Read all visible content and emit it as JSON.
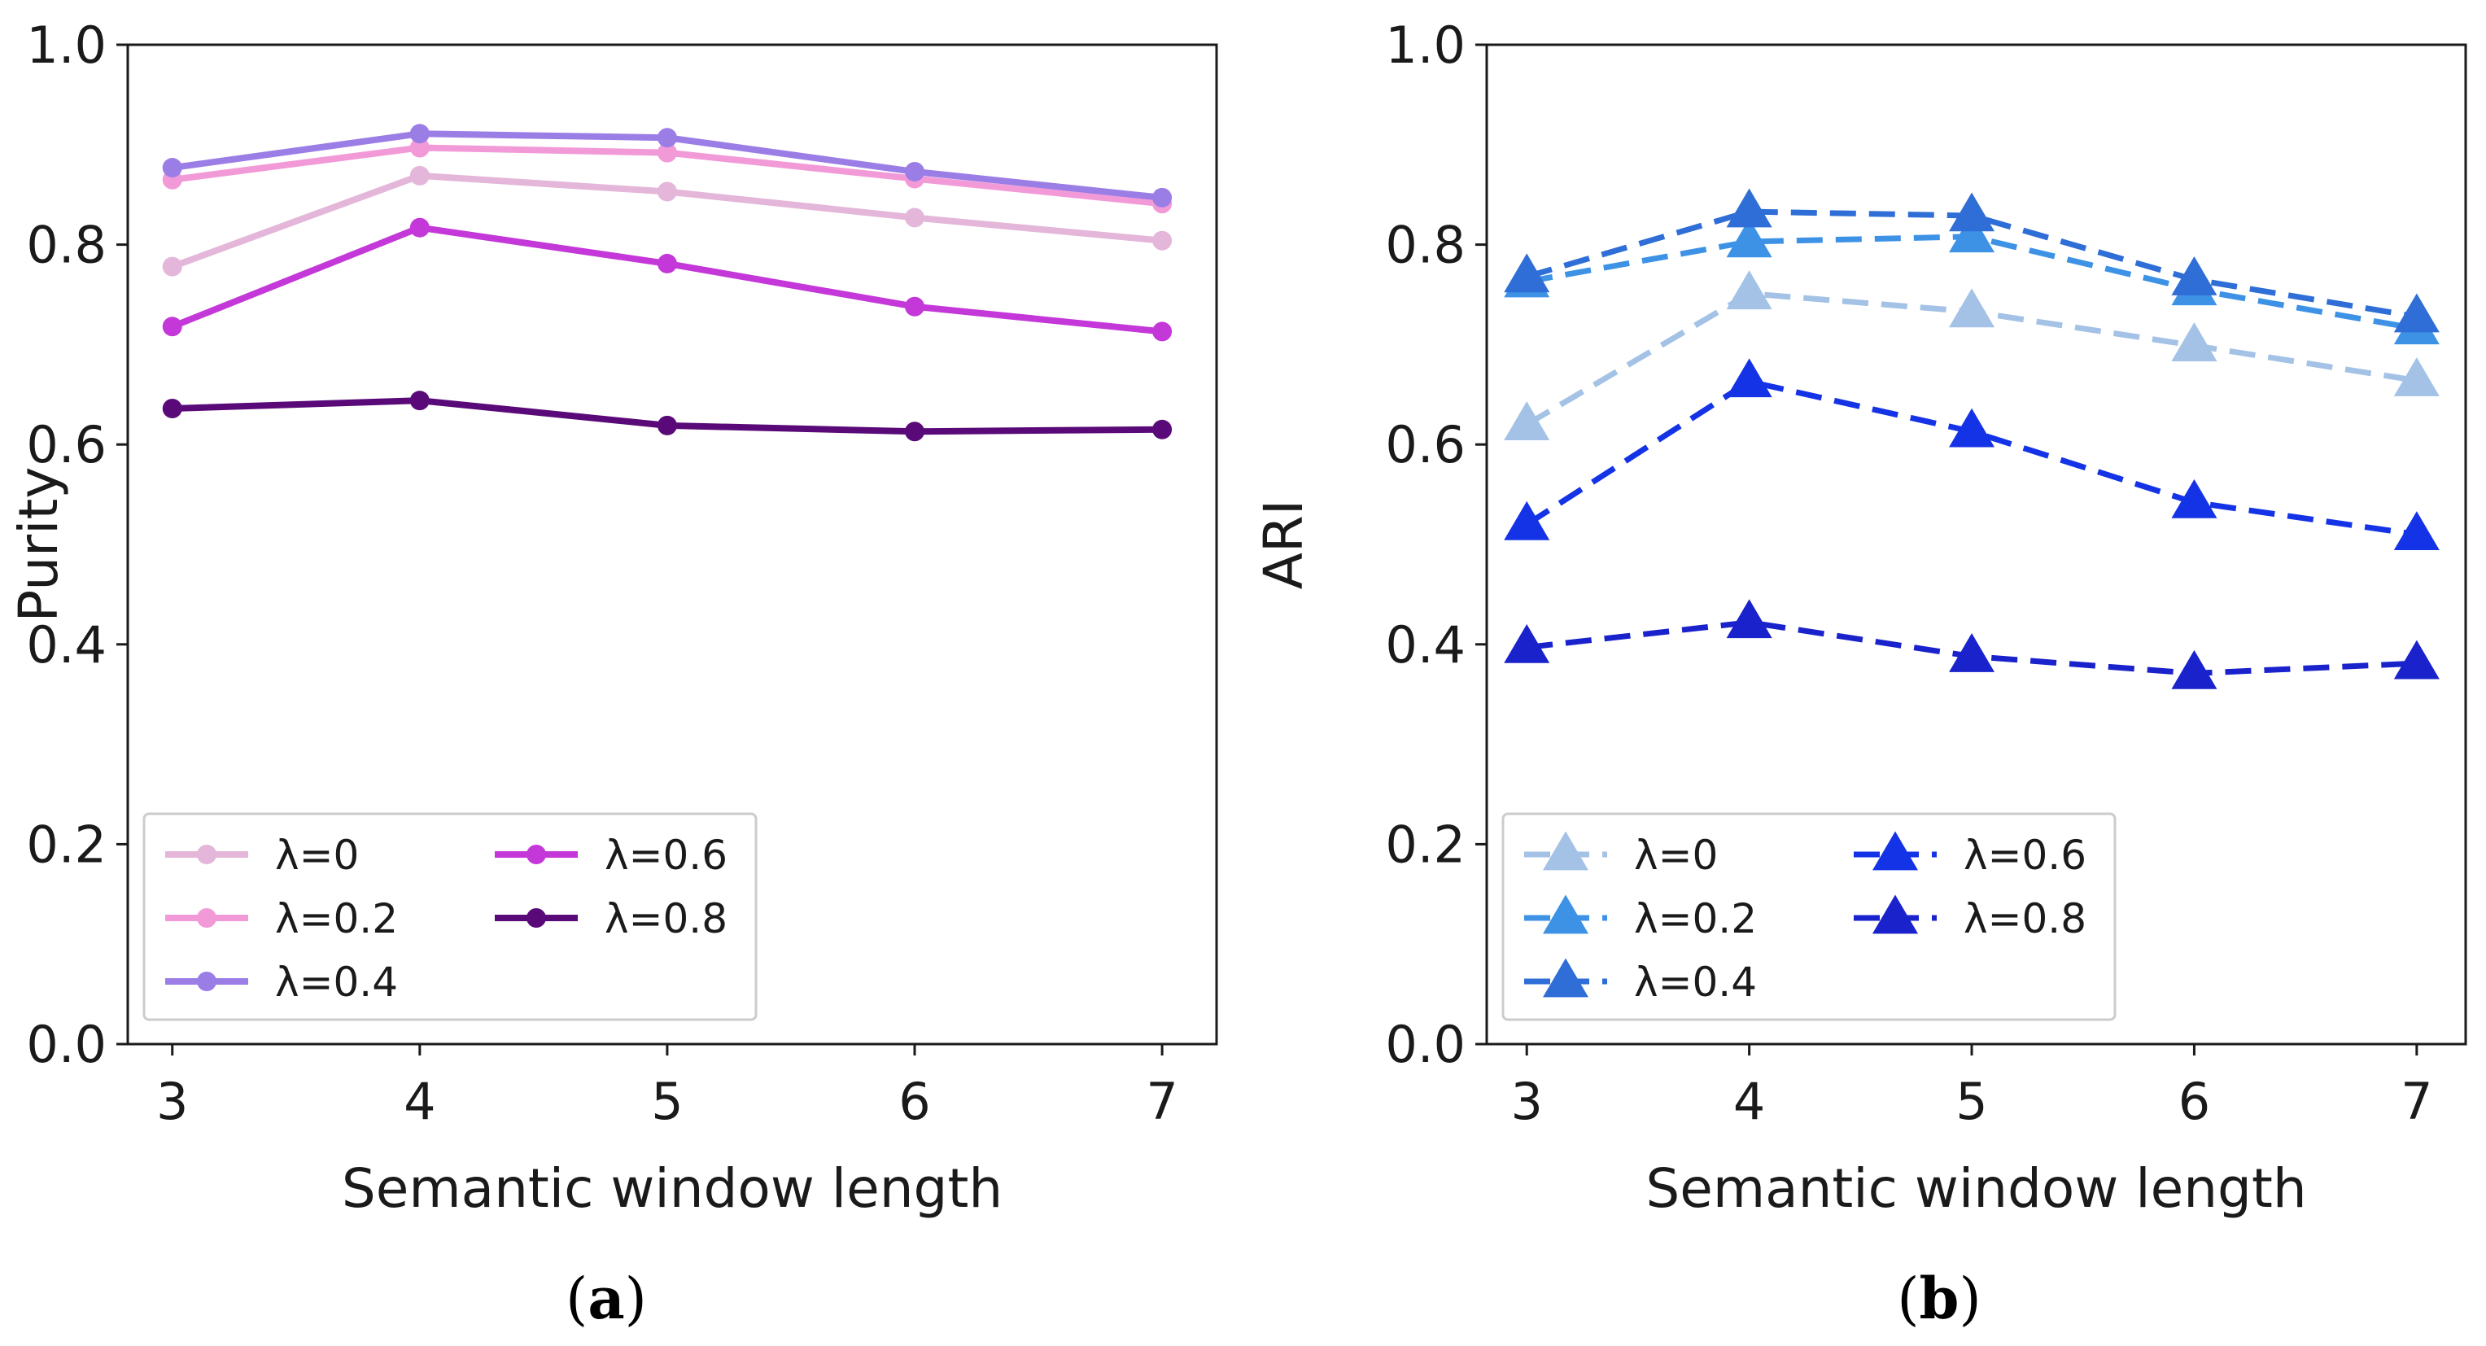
{
  "chart_data": [
    {
      "type": "line",
      "caption": {
        "open": "(",
        "letter": "a",
        "close": ")"
      },
      "xlabel": "Semantic window length",
      "ylabel": "Purity",
      "x": [
        3,
        4,
        5,
        6,
        7
      ],
      "xticks": [
        "3",
        "4",
        "5",
        "6",
        "7"
      ],
      "xlim": [
        2.82,
        7.22
      ],
      "ylim": [
        0.0,
        1.0
      ],
      "yticks": [
        "0.0",
        "0.2",
        "0.4",
        "0.6",
        "0.8",
        "1.0"
      ],
      "marker": "circle",
      "line_style": "solid",
      "legend_position": "lower-left",
      "series": [
        {
          "name": "λ=0",
          "color": "#e4b6d9",
          "values": [
            0.778,
            0.869,
            0.853,
            0.827,
            0.804
          ]
        },
        {
          "name": "λ=0.2",
          "color": "#f29ad8",
          "values": [
            0.865,
            0.897,
            0.892,
            0.866,
            0.841
          ]
        },
        {
          "name": "λ=0.4",
          "color": "#9b7de6",
          "values": [
            0.877,
            0.911,
            0.907,
            0.873,
            0.847
          ]
        },
        {
          "name": "λ=0.6",
          "color": "#c437d8",
          "values": [
            0.718,
            0.817,
            0.781,
            0.738,
            0.713
          ]
        },
        {
          "name": "λ=0.8",
          "color": "#5a0a78",
          "values": [
            0.636,
            0.644,
            0.619,
            0.613,
            0.615
          ]
        }
      ]
    },
    {
      "type": "line",
      "caption": {
        "open": "(",
        "letter": "b",
        "close": ")"
      },
      "xlabel": "Semantic window length",
      "ylabel": "ARI",
      "x": [
        3,
        4,
        5,
        6,
        7
      ],
      "xticks": [
        "3",
        "4",
        "5",
        "6",
        "7"
      ],
      "xlim": [
        2.82,
        7.22
      ],
      "ylim": [
        0.0,
        1.0
      ],
      "yticks": [
        "0.0",
        "0.2",
        "0.4",
        "0.6",
        "0.8",
        "1.0"
      ],
      "marker": "triangle",
      "line_style": "dashed",
      "legend_position": "lower-left",
      "series": [
        {
          "name": "λ=0",
          "color": "#a3c2e6",
          "values": [
            0.62,
            0.751,
            0.733,
            0.699,
            0.664
          ]
        },
        {
          "name": "λ=0.2",
          "color": "#3d92e6",
          "values": [
            0.763,
            0.803,
            0.808,
            0.755,
            0.716
          ]
        },
        {
          "name": "λ=0.4",
          "color": "#2e6ed6",
          "values": [
            0.768,
            0.833,
            0.829,
            0.765,
            0.728
          ]
        },
        {
          "name": "λ=0.6",
          "color": "#1433e6",
          "values": [
            0.52,
            0.663,
            0.613,
            0.542,
            0.51
          ]
        },
        {
          "name": "λ=0.8",
          "color": "#1a22cc",
          "values": [
            0.397,
            0.422,
            0.388,
            0.371,
            0.381
          ]
        }
      ]
    }
  ]
}
